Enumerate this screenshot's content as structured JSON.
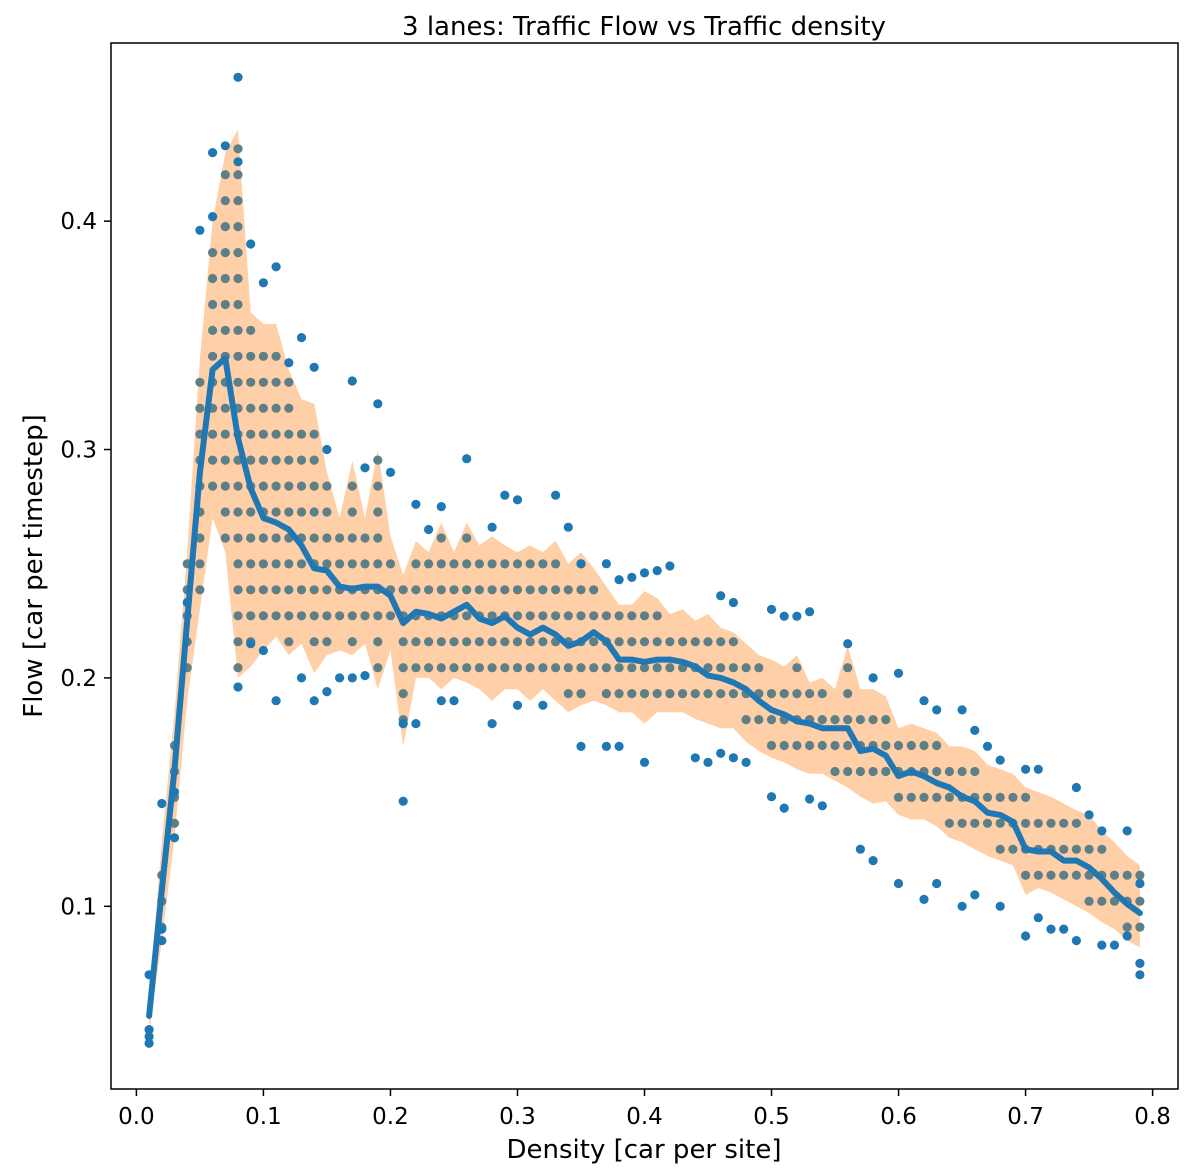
{
  "chart_data": {
    "type": "scatter",
    "title": "3 lanes: Traffic Flow vs Traffic density",
    "xlabel": "Density [car per site]",
    "ylabel": "Flow [car per timestep]",
    "xlim": [
      -0.02,
      0.82
    ],
    "ylim": [
      0.02,
      0.478
    ],
    "xticks": [
      "0.0",
      "0.1",
      "0.2",
      "0.3",
      "0.4",
      "0.5",
      "0.6",
      "0.7",
      "0.8"
    ],
    "yticks": [
      "0.1",
      "0.2",
      "0.3",
      "0.4"
    ],
    "grid": false,
    "legend": "none",
    "colors": {
      "outlier_points": "#1f77b4",
      "inlier_points": "#5f7f86",
      "mean_line": "#1f77b4",
      "band": "#ffcfa8"
    },
    "mean_line": {
      "x": [
        0.01,
        0.02,
        0.03,
        0.04,
        0.05,
        0.06,
        0.07,
        0.08,
        0.09,
        0.1,
        0.11,
        0.12,
        0.13,
        0.14,
        0.15,
        0.16,
        0.17,
        0.18,
        0.19,
        0.2,
        0.21,
        0.22,
        0.23,
        0.24,
        0.25,
        0.26,
        0.27,
        0.28,
        0.29,
        0.3,
        0.31,
        0.32,
        0.33,
        0.34,
        0.35,
        0.36,
        0.37,
        0.38,
        0.39,
        0.4,
        0.41,
        0.42,
        0.43,
        0.44,
        0.45,
        0.46,
        0.47,
        0.48,
        0.49,
        0.5,
        0.51,
        0.52,
        0.53,
        0.54,
        0.55,
        0.56,
        0.57,
        0.58,
        0.59,
        0.6,
        0.61,
        0.62,
        0.63,
        0.64,
        0.65,
        0.66,
        0.67,
        0.68,
        0.69,
        0.7,
        0.71,
        0.72,
        0.73,
        0.74,
        0.75,
        0.76,
        0.77,
        0.78,
        0.79
      ],
      "y": [
        0.052,
        0.107,
        0.16,
        0.225,
        0.29,
        0.335,
        0.34,
        0.305,
        0.283,
        0.27,
        0.268,
        0.265,
        0.258,
        0.248,
        0.247,
        0.24,
        0.239,
        0.24,
        0.24,
        0.236,
        0.224,
        0.229,
        0.228,
        0.226,
        0.229,
        0.232,
        0.226,
        0.224,
        0.227,
        0.222,
        0.219,
        0.222,
        0.219,
        0.214,
        0.216,
        0.22,
        0.216,
        0.208,
        0.208,
        0.207,
        0.208,
        0.208,
        0.207,
        0.205,
        0.201,
        0.2,
        0.198,
        0.195,
        0.19,
        0.186,
        0.184,
        0.181,
        0.18,
        0.178,
        0.178,
        0.178,
        0.168,
        0.169,
        0.166,
        0.157,
        0.159,
        0.157,
        0.154,
        0.152,
        0.148,
        0.146,
        0.141,
        0.14,
        0.137,
        0.125,
        0.124,
        0.124,
        0.12,
        0.12,
        0.117,
        0.112,
        0.106,
        0.101,
        0.097
      ]
    },
    "band": {
      "x": [
        0.01,
        0.02,
        0.03,
        0.04,
        0.05,
        0.06,
        0.07,
        0.08,
        0.09,
        0.1,
        0.11,
        0.12,
        0.13,
        0.14,
        0.15,
        0.16,
        0.17,
        0.18,
        0.19,
        0.2,
        0.21,
        0.22,
        0.23,
        0.24,
        0.25,
        0.26,
        0.27,
        0.28,
        0.29,
        0.3,
        0.31,
        0.32,
        0.33,
        0.34,
        0.35,
        0.36,
        0.37,
        0.38,
        0.39,
        0.4,
        0.41,
        0.42,
        0.43,
        0.44,
        0.45,
        0.46,
        0.47,
        0.48,
        0.49,
        0.5,
        0.51,
        0.52,
        0.53,
        0.54,
        0.55,
        0.56,
        0.57,
        0.58,
        0.59,
        0.6,
        0.61,
        0.62,
        0.63,
        0.64,
        0.65,
        0.66,
        0.67,
        0.68,
        0.69,
        0.7,
        0.71,
        0.72,
        0.73,
        0.74,
        0.75,
        0.76,
        0.77,
        0.78,
        0.79
      ],
      "upper": [
        0.06,
        0.128,
        0.185,
        0.255,
        0.34,
        0.4,
        0.43,
        0.44,
        0.36,
        0.355,
        0.355,
        0.335,
        0.322,
        0.32,
        0.29,
        0.27,
        0.295,
        0.27,
        0.3,
        0.262,
        0.245,
        0.26,
        0.255,
        0.268,
        0.255,
        0.268,
        0.258,
        0.262,
        0.258,
        0.255,
        0.258,
        0.255,
        0.26,
        0.25,
        0.255,
        0.248,
        0.24,
        0.232,
        0.232,
        0.238,
        0.235,
        0.228,
        0.23,
        0.225,
        0.228,
        0.222,
        0.22,
        0.215,
        0.21,
        0.208,
        0.205,
        0.21,
        0.198,
        0.2,
        0.195,
        0.214,
        0.195,
        0.195,
        0.192,
        0.178,
        0.18,
        0.178,
        0.176,
        0.17,
        0.17,
        0.168,
        0.162,
        0.16,
        0.158,
        0.152,
        0.15,
        0.148,
        0.145,
        0.142,
        0.14,
        0.133,
        0.128,
        0.122,
        0.118
      ],
      "lower": [
        0.045,
        0.085,
        0.13,
        0.19,
        0.23,
        0.27,
        0.255,
        0.2,
        0.205,
        0.212,
        0.218,
        0.21,
        0.215,
        0.202,
        0.21,
        0.212,
        0.21,
        0.215,
        0.195,
        0.212,
        0.17,
        0.2,
        0.2,
        0.195,
        0.2,
        0.198,
        0.195,
        0.19,
        0.195,
        0.195,
        0.19,
        0.195,
        0.19,
        0.185,
        0.188,
        0.19,
        0.188,
        0.185,
        0.185,
        0.18,
        0.185,
        0.185,
        0.185,
        0.182,
        0.18,
        0.178,
        0.178,
        0.172,
        0.168,
        0.165,
        0.163,
        0.16,
        0.158,
        0.158,
        0.155,
        0.152,
        0.148,
        0.145,
        0.146,
        0.14,
        0.138,
        0.138,
        0.135,
        0.13,
        0.128,
        0.125,
        0.122,
        0.12,
        0.118,
        0.105,
        0.108,
        0.106,
        0.103,
        0.1,
        0.097,
        0.093,
        0.09,
        0.085,
        0.082
      ]
    },
    "outlier_points": {
      "x": [
        0.01,
        0.01,
        0.01,
        0.01,
        0.02,
        0.02,
        0.02,
        0.03,
        0.03,
        0.04,
        0.05,
        0.06,
        0.06,
        0.07,
        0.08,
        0.08,
        0.09,
        0.1,
        0.11,
        0.12,
        0.13,
        0.14,
        0.15,
        0.17,
        0.18,
        0.19,
        0.2,
        0.21,
        0.22,
        0.23,
        0.24,
        0.26,
        0.28,
        0.29,
        0.3,
        0.33,
        0.34,
        0.35,
        0.37,
        0.38,
        0.39,
        0.4,
        0.41,
        0.42,
        0.46,
        0.47,
        0.5,
        0.51,
        0.52,
        0.53,
        0.56,
        0.58,
        0.6,
        0.62,
        0.63,
        0.65,
        0.66,
        0.67,
        0.68,
        0.7,
        0.71,
        0.74,
        0.75,
        0.76,
        0.78,
        0.79,
        0.08,
        0.09,
        0.1,
        0.11,
        0.13,
        0.14,
        0.15,
        0.16,
        0.17,
        0.18,
        0.21,
        0.22,
        0.24,
        0.25,
        0.28,
        0.3,
        0.32,
        0.35,
        0.37,
        0.38,
        0.4,
        0.44,
        0.45,
        0.46,
        0.47,
        0.48,
        0.5,
        0.51,
        0.53,
        0.54,
        0.57,
        0.58,
        0.6,
        0.62,
        0.63,
        0.65,
        0.66,
        0.68,
        0.7,
        0.71,
        0.72,
        0.73,
        0.74,
        0.76,
        0.77,
        0.78,
        0.79,
        0.79
      ],
      "y": [
        0.04,
        0.043,
        0.046,
        0.07,
        0.085,
        0.09,
        0.145,
        0.15,
        0.13,
        0.233,
        0.396,
        0.43,
        0.402,
        0.433,
        0.463,
        0.426,
        0.39,
        0.373,
        0.38,
        0.338,
        0.349,
        0.336,
        0.3,
        0.33,
        0.292,
        0.32,
        0.29,
        0.146,
        0.276,
        0.265,
        0.275,
        0.296,
        0.266,
        0.28,
        0.278,
        0.28,
        0.266,
        0.25,
        0.25,
        0.243,
        0.244,
        0.246,
        0.247,
        0.249,
        0.236,
        0.233,
        0.23,
        0.227,
        0.227,
        0.229,
        0.215,
        0.2,
        0.202,
        0.19,
        0.186,
        0.186,
        0.177,
        0.17,
        0.164,
        0.16,
        0.16,
        0.152,
        0.14,
        0.133,
        0.133,
        0.11,
        0.196,
        0.215,
        0.212,
        0.19,
        0.2,
        0.19,
        0.194,
        0.2,
        0.2,
        0.201,
        0.18,
        0.18,
        0.19,
        0.19,
        0.18,
        0.188,
        0.188,
        0.17,
        0.17,
        0.17,
        0.163,
        0.165,
        0.163,
        0.167,
        0.165,
        0.163,
        0.148,
        0.143,
        0.147,
        0.144,
        0.125,
        0.12,
        0.11,
        0.103,
        0.11,
        0.1,
        0.105,
        0.1,
        0.087,
        0.095,
        0.09,
        0.09,
        0.085,
        0.083,
        0.083,
        0.087,
        0.07,
        0.075
      ]
    }
  }
}
